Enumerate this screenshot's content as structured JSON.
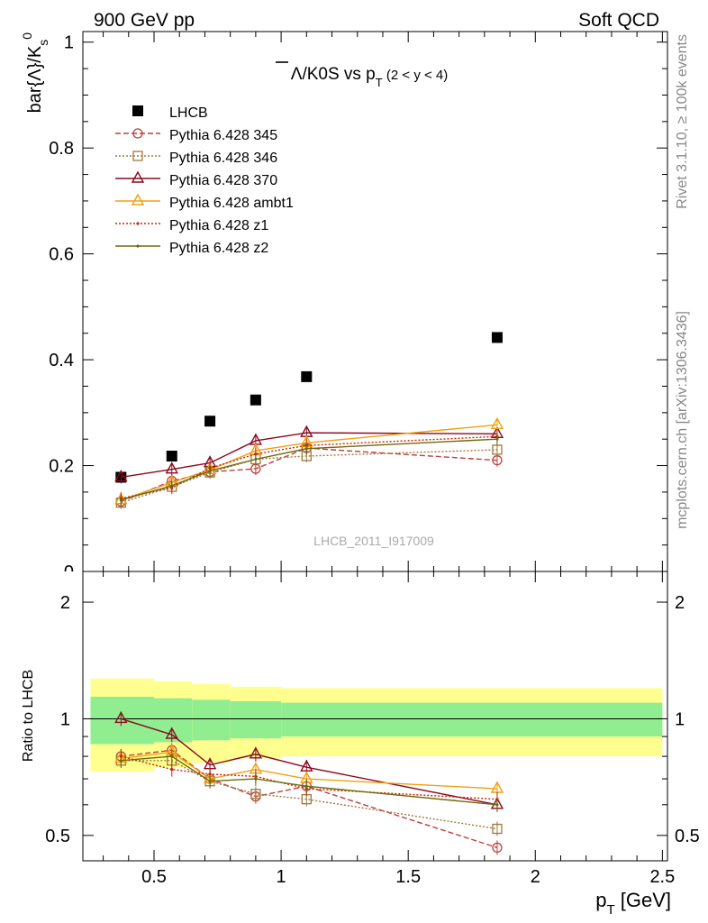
{
  "header": {
    "left": "900 GeV pp",
    "right": "Soft QCD",
    "side_top": "Rivet 3.1.10, ≥ 100k events",
    "side_bottom": "mcplots.cern.ch [arXiv:1306.3436]",
    "watermark": "LHCB_2011_I917009"
  },
  "chart_data": [
    {
      "type": "scatter",
      "panel": "main",
      "title": "Λ̅/K0S vs pT (2 < y < 4)",
      "ylabel": "bar(Λ)/K0s",
      "xlim": [
        0.22,
        2.52
      ],
      "ylim": [
        0,
        1.02
      ],
      "yticks": [
        0.2,
        0.4,
        0.6,
        0.8,
        1
      ],
      "ytick_labels": [
        "0.2",
        "0.4",
        "0.6",
        "0.8",
        "1"
      ],
      "x": [
        0.37,
        0.57,
        0.72,
        0.9,
        1.1,
        1.85
      ],
      "series": [
        {
          "name": "LHCB",
          "color": "#000000",
          "marker": "square-filled",
          "line": "none",
          "values": [
            0.178,
            0.218,
            0.284,
            0.324,
            0.368,
            0.442
          ]
        },
        {
          "name": "Pythia 6.428 345",
          "color": "#bf3f3f",
          "marker": "circle",
          "line": "dashed",
          "values": [
            0.132,
            0.171,
            0.188,
            0.194,
            0.233,
            0.21
          ]
        },
        {
          "name": "Pythia 6.428 346",
          "color": "#a0783c",
          "marker": "square",
          "line": "dotted",
          "values": [
            0.13,
            0.16,
            0.187,
            0.212,
            0.218,
            0.23
          ]
        },
        {
          "name": "Pythia 6.428 370",
          "color": "#8b0a1e",
          "marker": "triangle",
          "line": "solid",
          "values": [
            0.178,
            0.193,
            0.205,
            0.247,
            0.262,
            0.26
          ]
        },
        {
          "name": "Pythia 6.428 ambt1",
          "color": "#f0a010",
          "marker": "triangle",
          "line": "solid",
          "values": [
            0.135,
            0.168,
            0.192,
            0.228,
            0.243,
            0.277
          ]
        },
        {
          "name": "Pythia 6.428 z1",
          "color": "#cc2200",
          "marker": "dot",
          "line": "dotted",
          "values": [
            0.138,
            0.158,
            0.195,
            0.222,
            0.238,
            0.255
          ]
        },
        {
          "name": "Pythia 6.428 z2",
          "color": "#6b6b10",
          "marker": "dot",
          "line": "solid",
          "values": [
            0.135,
            0.162,
            0.19,
            0.212,
            0.232,
            0.25
          ]
        }
      ]
    },
    {
      "type": "line",
      "panel": "ratio",
      "ylabel": "Ratio to LHCB",
      "xlabel": "pT [GeV]",
      "xlim": [
        0.22,
        2.52
      ],
      "xticks": [
        0.5,
        1,
        1.5,
        2,
        2.5
      ],
      "xtick_labels": [
        "0.5",
        "1",
        "1.5",
        "2",
        "2.5"
      ],
      "yticks": [
        0.5,
        1,
        2
      ],
      "ytick_labels": [
        "0.5",
        "1",
        "2"
      ],
      "log_y": true,
      "ylim": [
        0.43,
        2.4
      ],
      "x": [
        0.37,
        0.57,
        0.72,
        0.9,
        1.1,
        1.85
      ],
      "band": {
        "x_edges": [
          0.25,
          0.5,
          0.65,
          0.8,
          1.0,
          1.2,
          2.5
        ],
        "inner": [
          0.14,
          0.13,
          0.12,
          0.11,
          0.1,
          0.1
        ],
        "outer": [
          0.27,
          0.25,
          0.23,
          0.21,
          0.2,
          0.2
        ],
        "inner_color": "#90ee90",
        "outer_color": "#ffff90"
      },
      "series": [
        {
          "name": "Pythia 6.428 345",
          "values": [
            0.8,
            0.83,
            0.7,
            0.63,
            0.67,
            0.465
          ]
        },
        {
          "name": "Pythia 6.428 346",
          "values": [
            0.78,
            0.78,
            0.69,
            0.64,
            0.62,
            0.52
          ]
        },
        {
          "name": "Pythia 6.428 370",
          "values": [
            1.0,
            0.91,
            0.76,
            0.81,
            0.75,
            0.6
          ]
        },
        {
          "name": "Pythia 6.428 ambt1",
          "values": [
            0.79,
            0.82,
            0.7,
            0.74,
            0.7,
            0.66
          ]
        },
        {
          "name": "Pythia 6.428 z1",
          "values": [
            0.8,
            0.74,
            0.72,
            0.71,
            0.66,
            0.62
          ]
        },
        {
          "name": "Pythia 6.428 z2",
          "values": [
            0.78,
            0.8,
            0.69,
            0.7,
            0.67,
            0.6
          ]
        }
      ]
    }
  ]
}
